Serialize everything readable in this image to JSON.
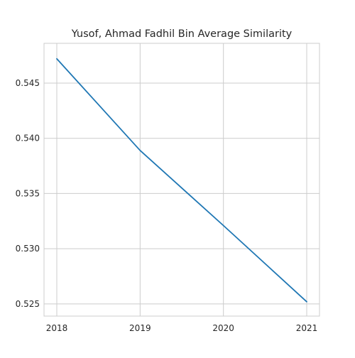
{
  "chart_data": {
    "type": "line",
    "title": "Yusof, Ahmad Fadhil Bin Average Similarity",
    "xlabel": "",
    "ylabel": "",
    "x": [
      2018,
      2019,
      2020,
      2021
    ],
    "series": [
      {
        "values": [
          0.5472,
          0.5389,
          0.5321,
          0.5252
        ]
      }
    ],
    "xticks": [
      "2018",
      "2019",
      "2020",
      "2021"
    ],
    "yticks": [
      "0.525",
      "0.530",
      "0.535",
      "0.540",
      "0.545"
    ],
    "ytick_values": [
      0.525,
      0.53,
      0.535,
      0.54,
      0.545
    ],
    "ylim": [
      0.5239,
      0.5486
    ],
    "grid": true,
    "colors": {
      "line": "#1f77b4",
      "grid": "#cccccc",
      "spine": "#cccccc",
      "text": "#262626"
    }
  }
}
